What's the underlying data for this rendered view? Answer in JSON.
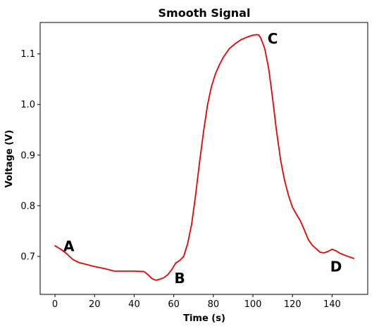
{
  "chart_data": {
    "type": "line",
    "title": "Smooth Signal",
    "xlabel": "Time (s)",
    "ylabel": "Voltage (V)",
    "xlim": [
      -7.5,
      158
    ],
    "ylim": [
      0.625,
      1.162
    ],
    "xticks": [
      0,
      20,
      40,
      60,
      80,
      100,
      120,
      140
    ],
    "yticks": [
      0.7,
      0.8,
      0.9,
      1.0,
      1.1
    ],
    "ytick_labels": [
      "0.7",
      "0.8",
      "0.9",
      "1.0",
      "1.1"
    ],
    "grid": false,
    "series": [
      {
        "color": "#ee0000",
        "x": [
          0,
          3,
          6,
          9,
          12,
          15,
          20,
          25,
          30,
          35,
          40,
          45,
          47,
          49,
          51,
          53,
          55,
          57,
          59,
          61,
          63,
          65,
          67,
          69,
          71,
          73,
          75,
          77,
          79,
          81,
          83,
          85,
          88,
          91,
          94,
          97,
          100,
          102,
          103,
          104,
          106,
          108,
          110,
          112,
          114,
          116,
          118,
          120,
          122,
          124,
          126,
          128,
          130,
          132,
          134,
          136,
          138,
          140,
          142,
          144,
          146,
          148,
          151
        ],
        "y": [
          0.721,
          0.714,
          0.705,
          0.694,
          0.688,
          0.685,
          0.68,
          0.676,
          0.671,
          0.671,
          0.671,
          0.67,
          0.664,
          0.656,
          0.653,
          0.655,
          0.658,
          0.664,
          0.674,
          0.687,
          0.692,
          0.7,
          0.725,
          0.763,
          0.82,
          0.885,
          0.945,
          0.998,
          1.035,
          1.06,
          1.078,
          1.093,
          1.11,
          1.12,
          1.128,
          1.133,
          1.137,
          1.138,
          1.137,
          1.131,
          1.11,
          1.07,
          1.01,
          0.945,
          0.89,
          0.85,
          0.82,
          0.797,
          0.783,
          0.77,
          0.752,
          0.733,
          0.722,
          0.715,
          0.708,
          0.707,
          0.71,
          0.714,
          0.711,
          0.706,
          0.703,
          0.7,
          0.696
        ]
      }
    ],
    "annotations": [
      {
        "text": "A",
        "x": 7,
        "y": 0.72
      },
      {
        "text": "B",
        "x": 63,
        "y": 0.657
      },
      {
        "text": "C",
        "x": 110,
        "y": 1.13
      },
      {
        "text": "D",
        "x": 142,
        "y": 0.68
      }
    ]
  }
}
